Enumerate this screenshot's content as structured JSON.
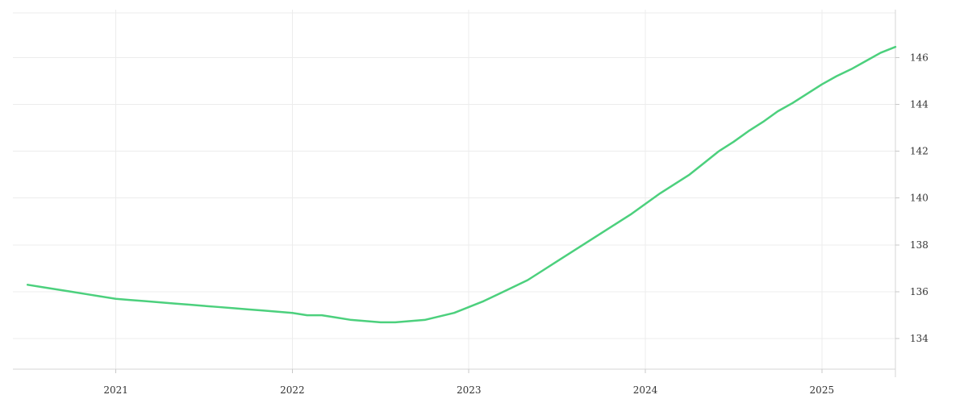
{
  "chart_data": {
    "type": "line",
    "title": "",
    "xlabel": "",
    "ylabel": "",
    "x_ticks": [
      "2021",
      "2022",
      "2023",
      "2024",
      "2025"
    ],
    "y_ticks": [
      134,
      136,
      138,
      140,
      142,
      144,
      146
    ],
    "xlim": [
      "2020-06",
      "2025-06"
    ],
    "ylim": [
      132.7,
      147.9
    ],
    "y_axis_side": "right",
    "grid": true,
    "legend": "none",
    "series": [
      {
        "color": "#4cd07d",
        "x": [
          "2020-07",
          "2020-08",
          "2020-09",
          "2020-10",
          "2020-11",
          "2020-12",
          "2021-01",
          "2021-02",
          "2021-03",
          "2021-04",
          "2021-05",
          "2021-06",
          "2021-07",
          "2021-08",
          "2021-09",
          "2021-10",
          "2021-11",
          "2021-12",
          "2022-01",
          "2022-02",
          "2022-03",
          "2022-04",
          "2022-05",
          "2022-06",
          "2022-07",
          "2022-08",
          "2022-09",
          "2022-10",
          "2022-11",
          "2022-12",
          "2023-01",
          "2023-02",
          "2023-03",
          "2023-04",
          "2023-05",
          "2023-06",
          "2023-07",
          "2023-08",
          "2023-09",
          "2023-10",
          "2023-11",
          "2023-12",
          "2024-01",
          "2024-02",
          "2024-03",
          "2024-04",
          "2024-05",
          "2024-06",
          "2024-07",
          "2024-08",
          "2024-09",
          "2024-10",
          "2024-11",
          "2024-12",
          "2025-01",
          "2025-02",
          "2025-03",
          "2025-04",
          "2025-05",
          "2025-06"
        ],
        "y": [
          136.3,
          136.2,
          136.1,
          136.0,
          135.9,
          135.8,
          135.7,
          135.65,
          135.6,
          135.55,
          135.5,
          135.45,
          135.4,
          135.35,
          135.3,
          135.25,
          135.2,
          135.15,
          135.1,
          135.0,
          135.0,
          134.9,
          134.8,
          134.75,
          134.7,
          134.7,
          134.75,
          134.8,
          134.95,
          135.1,
          135.35,
          135.6,
          135.9,
          136.2,
          136.5,
          136.9,
          137.3,
          137.7,
          138.1,
          138.5,
          138.9,
          139.3,
          139.75,
          140.2,
          140.6,
          141.0,
          141.5,
          142.0,
          142.4,
          142.85,
          143.25,
          143.7,
          144.05,
          144.45,
          144.85,
          145.2,
          145.5,
          145.85,
          146.2,
          146.45
        ]
      }
    ]
  }
}
